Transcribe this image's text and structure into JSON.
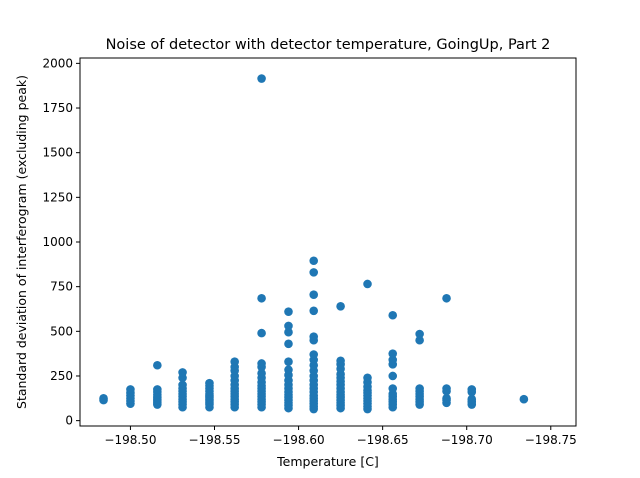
{
  "chart_data": {
    "type": "scatter",
    "title": "Noise of detector with detector temperature, GoingUp, Part 2",
    "xlabel": "Temperature [C]",
    "ylabel": "Standard deviation of interferogram (excluding peak)",
    "xlim": [
      -198.47,
      -198.765
    ],
    "ylim": [
      -30,
      2030
    ],
    "xticks": [
      -198.5,
      -198.55,
      -198.6,
      -198.65,
      -198.7,
      -198.75
    ],
    "xtick_labels": [
      "−198.50",
      "−198.55",
      "−198.60",
      "−198.65",
      "−198.70",
      "−198.75"
    ],
    "yticks": [
      0,
      250,
      500,
      750,
      1000,
      1250,
      1500,
      1750,
      2000
    ],
    "ytick_labels": [
      "0",
      "250",
      "500",
      "750",
      "1000",
      "1250",
      "1500",
      "1750",
      "2000"
    ],
    "grid": false,
    "color": "#1f77b4",
    "series": [
      {
        "name": "",
        "points": [
          [
            -198.484,
            115
          ],
          [
            -198.484,
            125
          ],
          [
            -198.5,
            95
          ],
          [
            -198.5,
            110
          ],
          [
            -198.5,
            125
          ],
          [
            -198.5,
            140
          ],
          [
            -198.5,
            155
          ],
          [
            -198.5,
            175
          ],
          [
            -198.516,
            90
          ],
          [
            -198.516,
            100
          ],
          [
            -198.516,
            110
          ],
          [
            -198.516,
            120
          ],
          [
            -198.516,
            130
          ],
          [
            -198.516,
            145
          ],
          [
            -198.516,
            160
          ],
          [
            -198.516,
            175
          ],
          [
            -198.516,
            310
          ],
          [
            -198.531,
            75
          ],
          [
            -198.531,
            90
          ],
          [
            -198.531,
            105
          ],
          [
            -198.531,
            120
          ],
          [
            -198.531,
            135
          ],
          [
            -198.531,
            150
          ],
          [
            -198.531,
            165
          ],
          [
            -198.531,
            180
          ],
          [
            -198.531,
            200
          ],
          [
            -198.531,
            240
          ],
          [
            -198.531,
            270
          ],
          [
            -198.547,
            75
          ],
          [
            -198.547,
            90
          ],
          [
            -198.547,
            100
          ],
          [
            -198.547,
            110
          ],
          [
            -198.547,
            120
          ],
          [
            -198.547,
            130
          ],
          [
            -198.547,
            140
          ],
          [
            -198.547,
            150
          ],
          [
            -198.547,
            165
          ],
          [
            -198.547,
            180
          ],
          [
            -198.547,
            195
          ],
          [
            -198.547,
            210
          ],
          [
            -198.562,
            75
          ],
          [
            -198.562,
            90
          ],
          [
            -198.562,
            105
          ],
          [
            -198.562,
            120
          ],
          [
            -198.562,
            135
          ],
          [
            -198.562,
            150
          ],
          [
            -198.562,
            165
          ],
          [
            -198.562,
            180
          ],
          [
            -198.562,
            200
          ],
          [
            -198.562,
            225
          ],
          [
            -198.562,
            250
          ],
          [
            -198.562,
            280
          ],
          [
            -198.562,
            300
          ],
          [
            -198.562,
            330
          ],
          [
            -198.578,
            75
          ],
          [
            -198.578,
            90
          ],
          [
            -198.578,
            105
          ],
          [
            -198.578,
            120
          ],
          [
            -198.578,
            135
          ],
          [
            -198.578,
            150
          ],
          [
            -198.578,
            165
          ],
          [
            -198.578,
            180
          ],
          [
            -198.578,
            195
          ],
          [
            -198.578,
            215
          ],
          [
            -198.578,
            240
          ],
          [
            -198.578,
            265
          ],
          [
            -198.578,
            300
          ],
          [
            -198.578,
            320
          ],
          [
            -198.578,
            490
          ],
          [
            -198.578,
            685
          ],
          [
            -198.578,
            1915
          ],
          [
            -198.594,
            70
          ],
          [
            -198.594,
            85
          ],
          [
            -198.594,
            100
          ],
          [
            -198.594,
            115
          ],
          [
            -198.594,
            130
          ],
          [
            -198.594,
            145
          ],
          [
            -198.594,
            160
          ],
          [
            -198.594,
            180
          ],
          [
            -198.594,
            200
          ],
          [
            -198.594,
            225
          ],
          [
            -198.594,
            255
          ],
          [
            -198.594,
            285
          ],
          [
            -198.594,
            330
          ],
          [
            -198.594,
            430
          ],
          [
            -198.594,
            495
          ],
          [
            -198.594,
            530
          ],
          [
            -198.594,
            610
          ],
          [
            -198.609,
            65
          ],
          [
            -198.609,
            80
          ],
          [
            -198.609,
            95
          ],
          [
            -198.609,
            110
          ],
          [
            -198.609,
            125
          ],
          [
            -198.609,
            140
          ],
          [
            -198.609,
            160
          ],
          [
            -198.609,
            180
          ],
          [
            -198.609,
            200
          ],
          [
            -198.609,
            225
          ],
          [
            -198.609,
            250
          ],
          [
            -198.609,
            280
          ],
          [
            -198.609,
            310
          ],
          [
            -198.609,
            340
          ],
          [
            -198.609,
            370
          ],
          [
            -198.609,
            450
          ],
          [
            -198.609,
            470
          ],
          [
            -198.609,
            615
          ],
          [
            -198.609,
            705
          ],
          [
            -198.609,
            830
          ],
          [
            -198.609,
            895
          ],
          [
            -198.625,
            70
          ],
          [
            -198.625,
            85
          ],
          [
            -198.625,
            100
          ],
          [
            -198.625,
            115
          ],
          [
            -198.625,
            130
          ],
          [
            -198.625,
            145
          ],
          [
            -198.625,
            160
          ],
          [
            -198.625,
            180
          ],
          [
            -198.625,
            200
          ],
          [
            -198.625,
            220
          ],
          [
            -198.625,
            240
          ],
          [
            -198.625,
            260
          ],
          [
            -198.625,
            290
          ],
          [
            -198.625,
            315
          ],
          [
            -198.625,
            335
          ],
          [
            -198.625,
            640
          ],
          [
            -198.641,
            65
          ],
          [
            -198.641,
            80
          ],
          [
            -198.641,
            95
          ],
          [
            -198.641,
            110
          ],
          [
            -198.641,
            125
          ],
          [
            -198.641,
            140
          ],
          [
            -198.641,
            155
          ],
          [
            -198.641,
            170
          ],
          [
            -198.641,
            190
          ],
          [
            -198.641,
            215
          ],
          [
            -198.641,
            240
          ],
          [
            -198.641,
            765
          ],
          [
            -198.656,
            75
          ],
          [
            -198.656,
            90
          ],
          [
            -198.656,
            105
          ],
          [
            -198.656,
            120
          ],
          [
            -198.656,
            135
          ],
          [
            -198.656,
            150
          ],
          [
            -198.656,
            180
          ],
          [
            -198.656,
            250
          ],
          [
            -198.656,
            315
          ],
          [
            -198.656,
            340
          ],
          [
            -198.656,
            375
          ],
          [
            -198.656,
            590
          ],
          [
            -198.672,
            90
          ],
          [
            -198.672,
            105
          ],
          [
            -198.672,
            120
          ],
          [
            -198.672,
            135
          ],
          [
            -198.672,
            150
          ],
          [
            -198.672,
            165
          ],
          [
            -198.672,
            180
          ],
          [
            -198.672,
            450
          ],
          [
            -198.672,
            485
          ],
          [
            -198.688,
            100
          ],
          [
            -198.688,
            115
          ],
          [
            -198.688,
            125
          ],
          [
            -198.688,
            165
          ],
          [
            -198.688,
            180
          ],
          [
            -198.688,
            685
          ],
          [
            -198.703,
            90
          ],
          [
            -198.703,
            105
          ],
          [
            -198.703,
            120
          ],
          [
            -198.703,
            160
          ],
          [
            -198.703,
            175
          ],
          [
            -198.734,
            120
          ]
        ]
      }
    ]
  }
}
